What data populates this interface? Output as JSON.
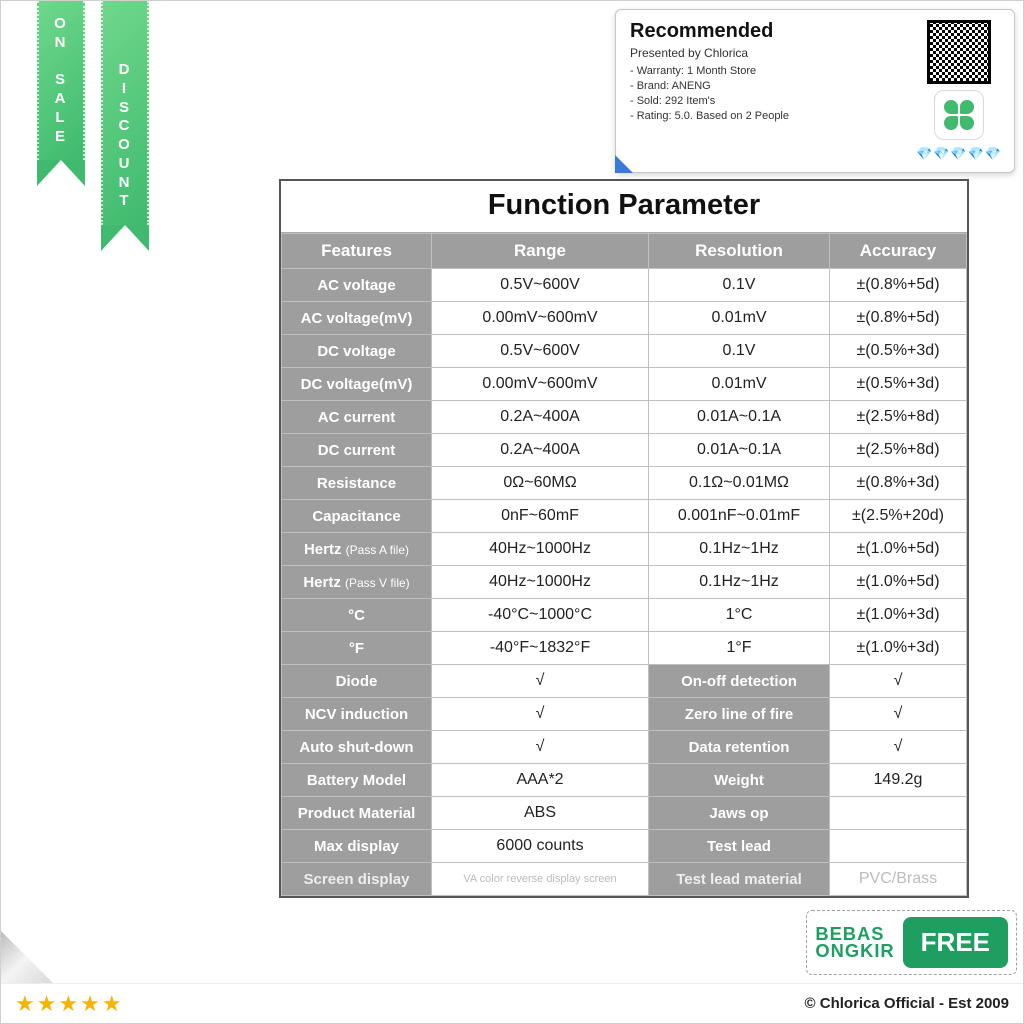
{
  "ribbons": {
    "left": {
      "text": "ON SALE"
    },
    "right": {
      "text": "DISCOUNT"
    }
  },
  "reco": {
    "title": "Recommended",
    "presented": "Presented by Chlorica",
    "lines": [
      "- Warranty: 1 Month Store",
      "- Brand: ANENG",
      "- Sold: 292 Item's",
      "- Rating: 5.0. Based on 2 People"
    ],
    "diamonds": "💎💎💎💎💎"
  },
  "table": {
    "title": "Function Parameter",
    "headers": [
      "Features",
      "Range",
      "Resolution",
      "Accuracy"
    ],
    "rows4": [
      [
        "AC voltage",
        "0.5V~600V",
        "0.1V",
        "±(0.8%+5d)"
      ],
      [
        "AC voltage(mV)",
        "0.00mV~600mV",
        "0.01mV",
        "±(0.8%+5d)"
      ],
      [
        "DC voltage",
        "0.5V~600V",
        "0.1V",
        "±(0.5%+3d)"
      ],
      [
        "DC voltage(mV)",
        "0.00mV~600mV",
        "0.01mV",
        "±(0.5%+3d)"
      ],
      [
        "AC current",
        "0.2A~400A",
        "0.01A~0.1A",
        "±(2.5%+8d)"
      ],
      [
        "DC current",
        "0.2A~400A",
        "0.01A~0.1A",
        "±(2.5%+8d)"
      ],
      [
        "Resistance",
        "0Ω~60MΩ",
        "0.1Ω~0.01MΩ",
        "±(0.8%+3d)"
      ],
      [
        "Capacitance",
        "0nF~60mF",
        "0.001nF~0.01mF",
        "±(2.5%+20d)"
      ],
      [
        "Hertz (Pass A file)",
        "40Hz~1000Hz",
        "0.1Hz~1Hz",
        "±(1.0%+5d)"
      ],
      [
        "Hertz (Pass V file)",
        "40Hz~1000Hz",
        "0.1Hz~1Hz",
        "±(1.0%+5d)"
      ],
      [
        "°C",
        "-40°C~1000°C",
        "1°C",
        "±(1.0%+3d)"
      ],
      [
        "°F",
        "-40°F~1832°F",
        "1°F",
        "±(1.0%+3d)"
      ]
    ],
    "rowsPair": [
      [
        "Diode",
        "√",
        "On-off detection",
        "√"
      ],
      [
        "NCV induction",
        "√",
        "Zero line of fire",
        "√"
      ],
      [
        "Auto shut-down",
        "√",
        "Data retention",
        "√"
      ],
      [
        "Battery Model",
        "AAA*2",
        "Weight",
        "149.2g"
      ],
      [
        "Product Material",
        "ABS",
        "Jaws op",
        ""
      ],
      [
        "Max display",
        "6000 counts",
        "Test lead",
        ""
      ]
    ],
    "fadedRow": [
      "Screen display",
      "VA color reverse display screen",
      "Test lead material",
      "PVC/Brass"
    ]
  },
  "badges": {
    "bebas1": "BEBAS",
    "bebas2": "ONGKIR",
    "free": "FREE"
  },
  "footer": {
    "stars": "★★★★★",
    "copy": "© Chlorica Official - Est 2009"
  },
  "colors": {
    "green1": "#6fd88b",
    "green2": "#3fba6e",
    "headerGrey": "#9e9e9e",
    "freeGreen": "#1f9e62",
    "star": "#f7b400",
    "diamond": "#5ecbe8"
  }
}
